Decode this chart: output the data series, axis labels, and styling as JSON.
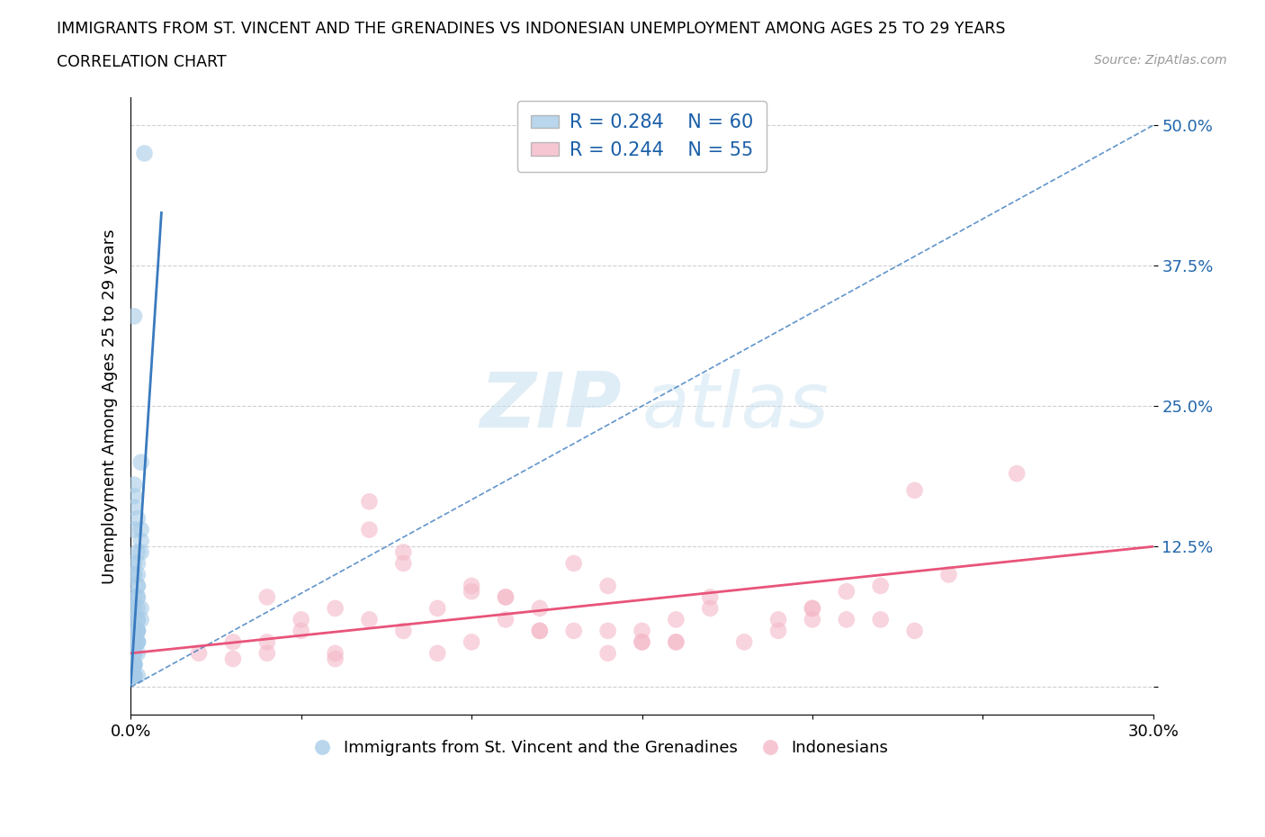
{
  "title_line1": "IMMIGRANTS FROM ST. VINCENT AND THE GRENADINES VS INDONESIAN UNEMPLOYMENT AMONG AGES 25 TO 29 YEARS",
  "title_line2": "CORRELATION CHART",
  "source_text": "Source: ZipAtlas.com",
  "ylabel": "Unemployment Among Ages 25 to 29 years",
  "xlim": [
    0.0,
    0.3
  ],
  "ylim": [
    -0.025,
    0.525
  ],
  "xticks": [
    0.0,
    0.05,
    0.1,
    0.15,
    0.2,
    0.25,
    0.3
  ],
  "xtick_labels": [
    "0.0%",
    "",
    "",
    "",
    "",
    "",
    "30.0%"
  ],
  "yticks": [
    0.0,
    0.125,
    0.25,
    0.375,
    0.5
  ],
  "ytick_labels": [
    "",
    "12.5%",
    "25.0%",
    "37.5%",
    "50.0%"
  ],
  "blue_R": 0.284,
  "blue_N": 60,
  "pink_R": 0.244,
  "pink_N": 55,
  "blue_color": "#a8cce8",
  "pink_color": "#f4b8c8",
  "blue_line_color": "#3a7abf",
  "pink_line_color": "#e8547a",
  "watermark_zip": "ZIP",
  "watermark_atlas": "atlas",
  "legend_label1": "Immigrants from St. Vincent and the Grenadines",
  "legend_label2": "Indonesians",
  "blue_scatter_x": [
    0.004,
    0.001,
    0.003,
    0.001,
    0.001,
    0.002,
    0.001,
    0.002,
    0.001,
    0.001,
    0.002,
    0.003,
    0.002,
    0.001,
    0.001,
    0.002,
    0.003,
    0.002,
    0.001,
    0.001,
    0.001,
    0.002,
    0.002,
    0.001,
    0.001,
    0.002,
    0.003,
    0.002,
    0.001,
    0.001,
    0.001,
    0.002,
    0.002,
    0.001,
    0.001,
    0.002,
    0.003,
    0.002,
    0.001,
    0.001,
    0.001,
    0.002,
    0.002,
    0.001,
    0.001,
    0.002,
    0.003,
    0.002,
    0.001,
    0.001,
    0.001,
    0.002,
    0.001,
    0.001,
    0.001,
    0.002,
    0.001,
    0.001,
    0.001,
    0.002
  ],
  "blue_scatter_y": [
    0.475,
    0.33,
    0.2,
    0.04,
    0.06,
    0.08,
    0.02,
    0.1,
    0.07,
    0.03,
    0.09,
    0.12,
    0.05,
    0.14,
    0.16,
    0.11,
    0.13,
    0.01,
    0.17,
    0.02,
    0.01,
    0.04,
    0.06,
    0.08,
    0.1,
    0.12,
    0.14,
    0.15,
    0.18,
    0.01,
    0.02,
    0.04,
    0.05,
    0.07,
    0.03,
    0.05,
    0.07,
    0.09,
    0.11,
    0.01,
    0.02,
    0.03,
    0.05,
    0.01,
    0.02,
    0.04,
    0.06,
    0.08,
    0.1,
    0.01,
    0.02,
    0.04,
    0.01,
    0.03,
    0.05,
    0.07,
    0.01,
    0.02,
    0.04,
    0.06
  ],
  "pink_scatter_x": [
    0.04,
    0.09,
    0.14,
    0.19,
    0.07,
    0.11,
    0.17,
    0.23,
    0.06,
    0.13,
    0.21,
    0.05,
    0.1,
    0.15,
    0.2,
    0.08,
    0.12,
    0.16,
    0.22,
    0.03,
    0.07,
    0.11,
    0.15,
    0.19,
    0.23,
    0.02,
    0.06,
    0.1,
    0.14,
    0.18,
    0.22,
    0.04,
    0.08,
    0.12,
    0.16,
    0.2,
    0.24,
    0.05,
    0.09,
    0.13,
    0.17,
    0.21,
    0.03,
    0.07,
    0.11,
    0.15,
    0.26,
    0.04,
    0.08,
    0.12,
    0.16,
    0.2,
    0.06,
    0.1,
    0.14
  ],
  "pink_scatter_y": [
    0.04,
    0.07,
    0.09,
    0.05,
    0.165,
    0.06,
    0.08,
    0.175,
    0.03,
    0.11,
    0.06,
    0.05,
    0.085,
    0.04,
    0.07,
    0.12,
    0.05,
    0.06,
    0.09,
    0.025,
    0.14,
    0.08,
    0.04,
    0.06,
    0.05,
    0.03,
    0.07,
    0.09,
    0.05,
    0.04,
    0.06,
    0.08,
    0.11,
    0.05,
    0.04,
    0.07,
    0.1,
    0.06,
    0.03,
    0.05,
    0.07,
    0.085,
    0.04,
    0.06,
    0.08,
    0.05,
    0.19,
    0.03,
    0.05,
    0.07,
    0.04,
    0.06,
    0.025,
    0.04,
    0.03
  ],
  "blue_trendline_x0": 0.0,
  "blue_trendline_x1": 0.3,
  "blue_trendline_y0": 0.0,
  "blue_trendline_y1": 0.5,
  "pink_trendline_x0": 0.0,
  "pink_trendline_x1": 0.3,
  "pink_trendline_y0": 0.03,
  "pink_trendline_y1": 0.125,
  "background_color": "#ffffff",
  "grid_color": "#d0d0d0"
}
